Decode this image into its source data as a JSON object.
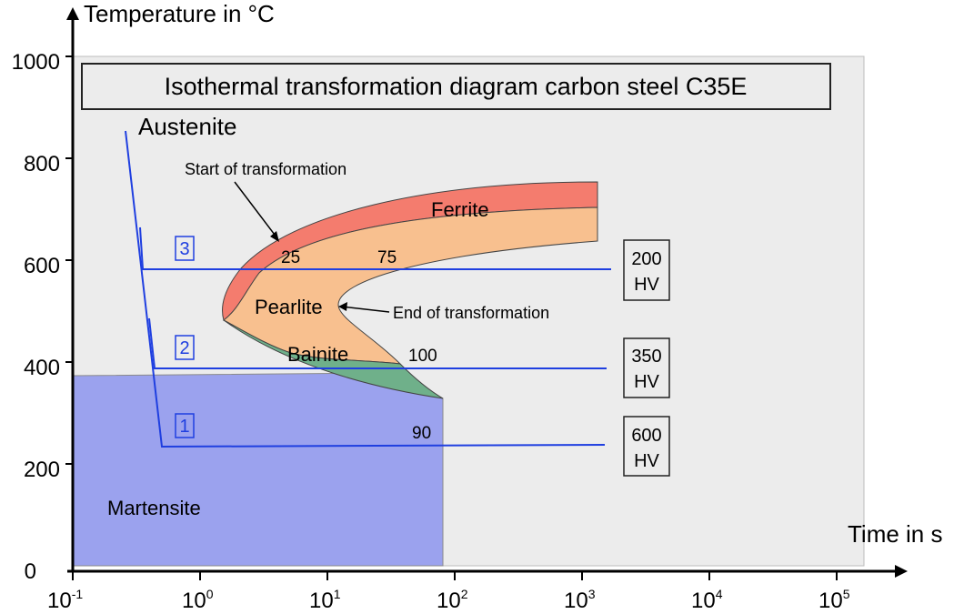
{
  "title": "Isothermal transformation diagram carbon steel C35E",
  "axes": {
    "y_label": "Temperature in °C",
    "x_label": "Time in s",
    "y_ticks": [
      "0",
      "200",
      "400",
      "600",
      "800",
      "1000"
    ],
    "x_ticks": [
      {
        "base": "10",
        "exp": "-1"
      },
      {
        "base": "10",
        "exp": "0"
      },
      {
        "base": "10",
        "exp": "1"
      },
      {
        "base": "10",
        "exp": "2"
      },
      {
        "base": "10",
        "exp": "3"
      },
      {
        "base": "10",
        "exp": "4"
      },
      {
        "base": "10",
        "exp": "5"
      }
    ]
  },
  "regions": {
    "austenite": "Austenite",
    "ferrite": "Ferrite",
    "pearlite": "Pearlite",
    "bainite": "Bainite",
    "martensite": "Martensite"
  },
  "annotations": {
    "start": "Start of transformation",
    "end": "End of transformation"
  },
  "values": {
    "v25": "25",
    "v75": "75",
    "v100": "100",
    "v90": "90"
  },
  "paths": [
    {
      "label": "3",
      "hardness_value": "200",
      "hardness_unit": "HV"
    },
    {
      "label": "2",
      "hardness_value": "350",
      "hardness_unit": "HV"
    },
    {
      "label": "1",
      "hardness_value": "600",
      "hardness_unit": "HV"
    }
  ],
  "colors": {
    "plot_bg": "#ececec",
    "martensite": "#9ba2ee",
    "ferrite": "#f47c6e",
    "pearlite": "#f8c08f",
    "bainite": "#6fb08a",
    "cooling_line": "#1f3fe0"
  }
}
